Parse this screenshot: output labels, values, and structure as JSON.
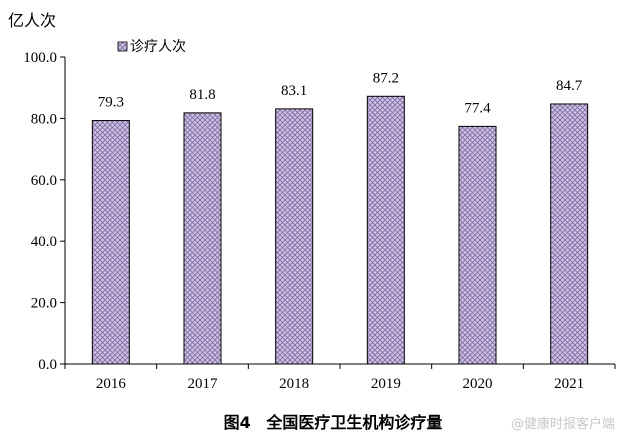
{
  "chart_data": {
    "type": "bar",
    "unit_label": "亿人次",
    "legend_label": "诊疗人次",
    "legend_position": "top-left",
    "categories": [
      "2016",
      "2017",
      "2018",
      "2019",
      "2020",
      "2021"
    ],
    "series": [
      {
        "name": "诊疗人次",
        "values": [
          79.3,
          81.8,
          83.1,
          87.2,
          77.4,
          84.7
        ]
      }
    ],
    "data_labels": [
      "79.3",
      "81.8",
      "83.1",
      "87.2",
      "77.4",
      "84.7"
    ],
    "ylim": [
      0,
      100
    ],
    "y_ticks": [
      "0.0",
      "20.0",
      "40.0",
      "60.0",
      "80.0",
      "100.0"
    ],
    "grid": false,
    "bar_fill": "#cfc3e6",
    "bar_pattern": "#7b6a9e",
    "bar_stroke": "#000000"
  },
  "caption": {
    "figure_number": "图4",
    "title": "全国医疗卫生机构诊疗量"
  },
  "watermark": "@健康时报客户端"
}
